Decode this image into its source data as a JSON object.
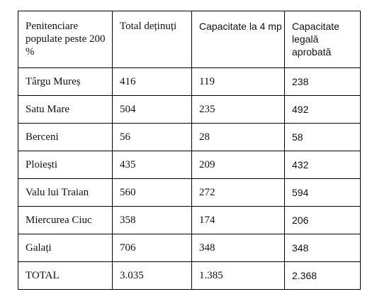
{
  "table": {
    "headers": [
      "Penitenciare populate peste 200 %",
      "Total deținuți",
      "Capacitate la 4 mp",
      "Capacitate legală aprobată"
    ],
    "rows": [
      [
        "Târgu Mureș",
        "416",
        "119",
        "238"
      ],
      [
        "Satu Mare",
        "504",
        "235",
        "492"
      ],
      [
        "Berceni",
        "56",
        "28",
        "58"
      ],
      [
        "Ploiești",
        "435",
        "209",
        "432"
      ],
      [
        "Valu lui Traian",
        "560",
        "272",
        "594"
      ],
      [
        "Miercurea Ciuc",
        "358",
        "174",
        "206"
      ],
      [
        "Galați",
        "706",
        "348",
        "348"
      ],
      [
        "TOTAL",
        "3.035",
        "1.385",
        "2.368"
      ]
    ]
  }
}
